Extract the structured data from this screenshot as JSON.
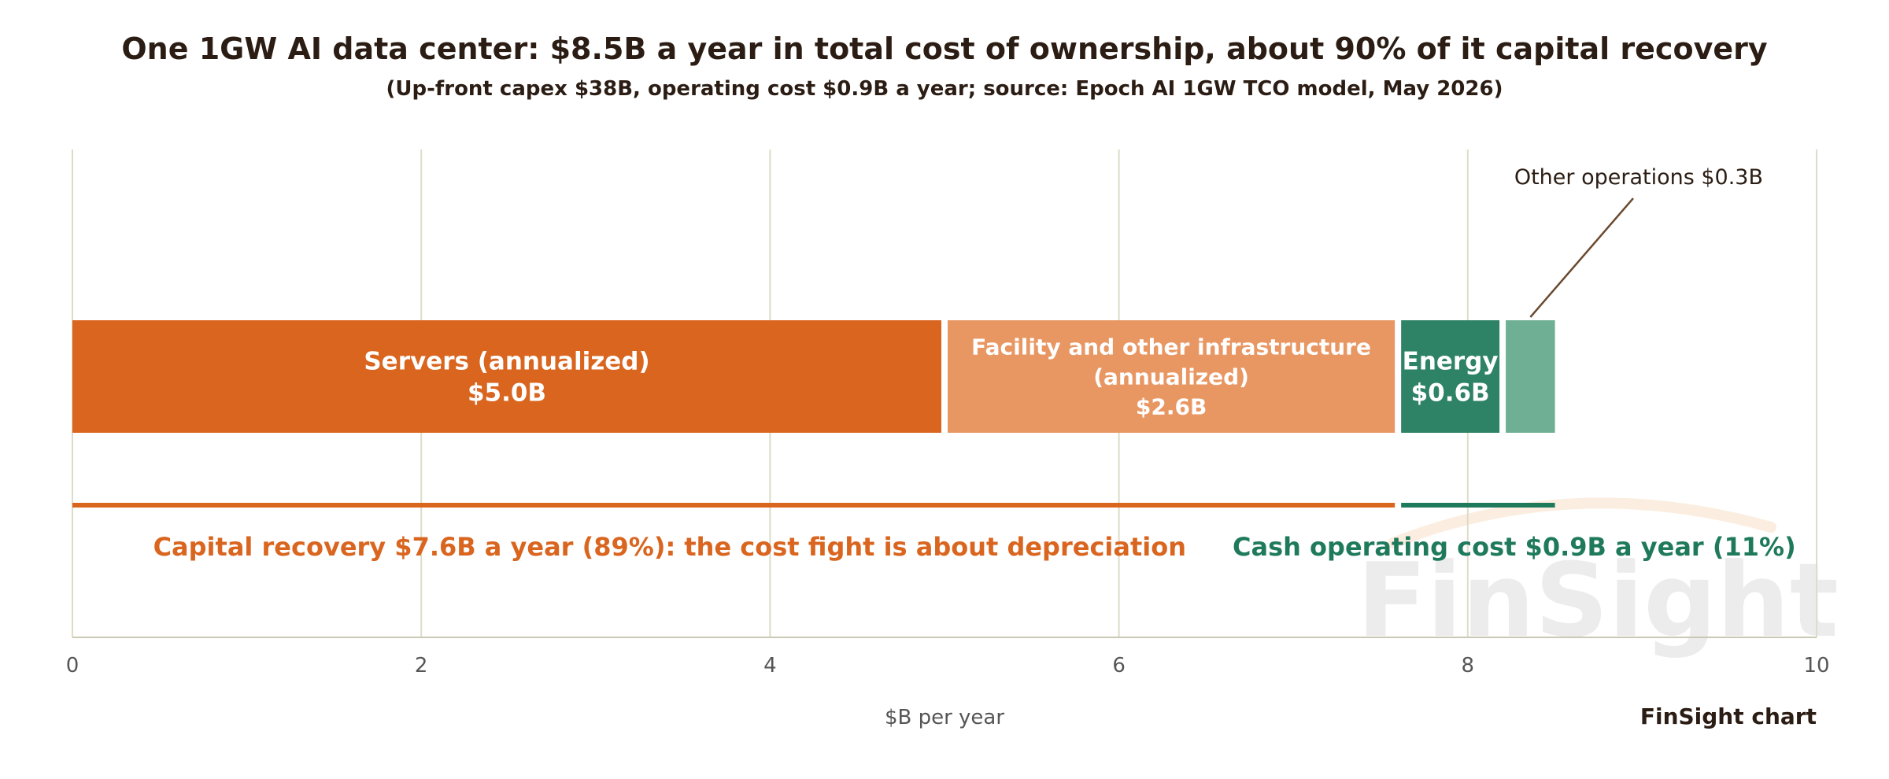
{
  "title": "One 1GW AI data center: $8.5B a year in total cost of ownership, about 90% of it capital recovery",
  "subtitle": "(Up-front capex $38B, operating cost $0.9B a year; source: Epoch AI 1GW TCO model, May 2026)",
  "credit": "FinSight chart",
  "watermark": "FinSight",
  "colors": {
    "servers": "#d9651f",
    "facility": "#e89763",
    "energy": "#2e8266",
    "other": "#6faf93",
    "capital": "#d9651f",
    "operating": "#1f7a5c",
    "text": "#2b1d14",
    "grid": "#dcdcc8"
  },
  "chart_data": {
    "type": "bar",
    "orientation": "horizontal-stacked",
    "xlabel": "$B per year",
    "xlim": [
      0,
      10
    ],
    "xticks": [
      "0",
      "2",
      "4",
      "6",
      "8",
      "10"
    ],
    "grid": true,
    "segments": [
      {
        "name": "Servers (annualized)",
        "value": 5.0,
        "label_lines": [
          "Servers (annualized)",
          "$5.0B"
        ],
        "color_key": "servers"
      },
      {
        "name": "Facility and other infrastructure (annualized)",
        "value": 2.6,
        "label_lines": [
          "Facility and other infrastructure",
          "(annualized)",
          "$2.6B"
        ],
        "color_key": "facility"
      },
      {
        "name": "Energy",
        "value": 0.6,
        "label_lines": [
          "Energy",
          "$0.6B"
        ],
        "color_key": "energy"
      },
      {
        "name": "Other operations",
        "value": 0.3,
        "label_lines": [],
        "color_key": "other"
      }
    ],
    "callout": {
      "text": "Other operations $0.3B",
      "segment": "Other operations"
    },
    "brackets": [
      {
        "start": 0,
        "end": 7.6,
        "color_key": "capital",
        "label": "Capital recovery $7.6B a year (89%): the cost fight is about depreciation"
      },
      {
        "start": 7.6,
        "end": 8.5,
        "color_key": "operating",
        "label": "Cash operating cost $0.9B a year (11%)"
      }
    ]
  }
}
